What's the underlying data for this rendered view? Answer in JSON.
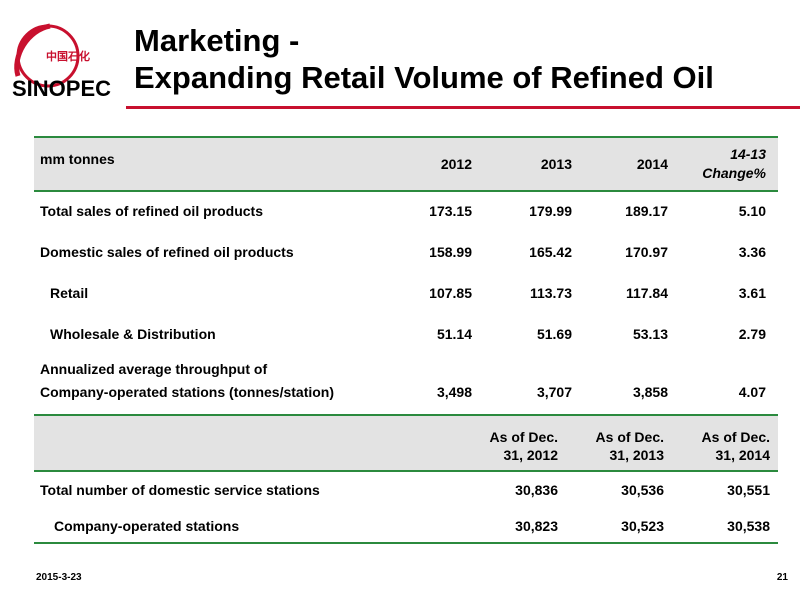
{
  "logo": {
    "text_cn": "中国石化",
    "text_en": "SINOPEC"
  },
  "title": {
    "line1": "Marketing -",
    "line2": "Expanding Retail Volume of Refined Oil"
  },
  "table1": {
    "header": {
      "unit": "mm tonnes",
      "col2012": "2012",
      "col2013": "2013",
      "col2014": "2014",
      "change_line1": "14-13",
      "change_line2": "Change%"
    },
    "rows": [
      {
        "label": "Total sales of refined oil products",
        "v2012": "173.15",
        "v2013": "179.99",
        "v2014": "189.17",
        "change": "5.10"
      },
      {
        "label": "Domestic sales of refined oil products",
        "v2012": "158.99",
        "v2013": "165.42",
        "v2014": "170.97",
        "change": "3.36"
      },
      {
        "label": "Retail",
        "v2012": "107.85",
        "v2013": "113.73",
        "v2014": "117.84",
        "change": "3.61"
      },
      {
        "label": "Wholesale & Distribution",
        "v2012": "51.14",
        "v2013": "51.69",
        "v2014": "53.13",
        "change": "2.79"
      },
      {
        "label_line1": "Annualized average throughput of",
        "label_line2": "Company-operated stations (tonnes/station)",
        "v2012": "3,498",
        "v2013": "3,707",
        "v2014": "3,858",
        "change": "4.07"
      }
    ]
  },
  "table2": {
    "header": {
      "c1_line1": "As of Dec.",
      "c1_line2": "31, 2012",
      "c2_line1": "As of Dec.",
      "c2_line2": "31, 2013",
      "c3_line1": "As of Dec.",
      "c3_line2": "31, 2014"
    },
    "rows": [
      {
        "label": "Total number of domestic service stations",
        "c1": "30,836",
        "c2": "30,536",
        "c3": "30,551"
      },
      {
        "label": "Company-operated stations",
        "c1": "30,823",
        "c2": "30,523",
        "c3": "30,538"
      }
    ]
  },
  "footer": {
    "date": "2015-3-23",
    "page": "21"
  },
  "colors": {
    "accent_red": "#c8102e",
    "rule_green": "#2b8a3e",
    "header_gray": "#e3e3e3"
  }
}
